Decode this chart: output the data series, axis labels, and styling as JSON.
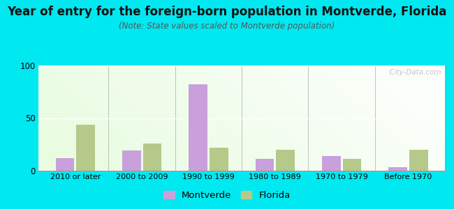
{
  "title": "Year of entry for the foreign-born population in Montverde, Florida",
  "subtitle": "(Note: State values scaled to Montverde population)",
  "categories": [
    "2010 or later",
    "2000 to 2009",
    "1990 to 1999",
    "1980 to 1989",
    "1970 to 1979",
    "Before 1970"
  ],
  "montverde_values": [
    12,
    19,
    82,
    11,
    14,
    3
  ],
  "florida_values": [
    44,
    26,
    22,
    20,
    11,
    20
  ],
  "montverde_color": "#c9a0dc",
  "florida_color": "#b5c98a",
  "ylim": [
    0,
    100
  ],
  "yticks": [
    0,
    50,
    100
  ],
  "background_outer": "#00e8f0",
  "title_fontsize": 12,
  "subtitle_fontsize": 8.5,
  "legend_fontsize": 9.5,
  "watermark_text": "  City-Data.com",
  "bar_width": 0.28
}
